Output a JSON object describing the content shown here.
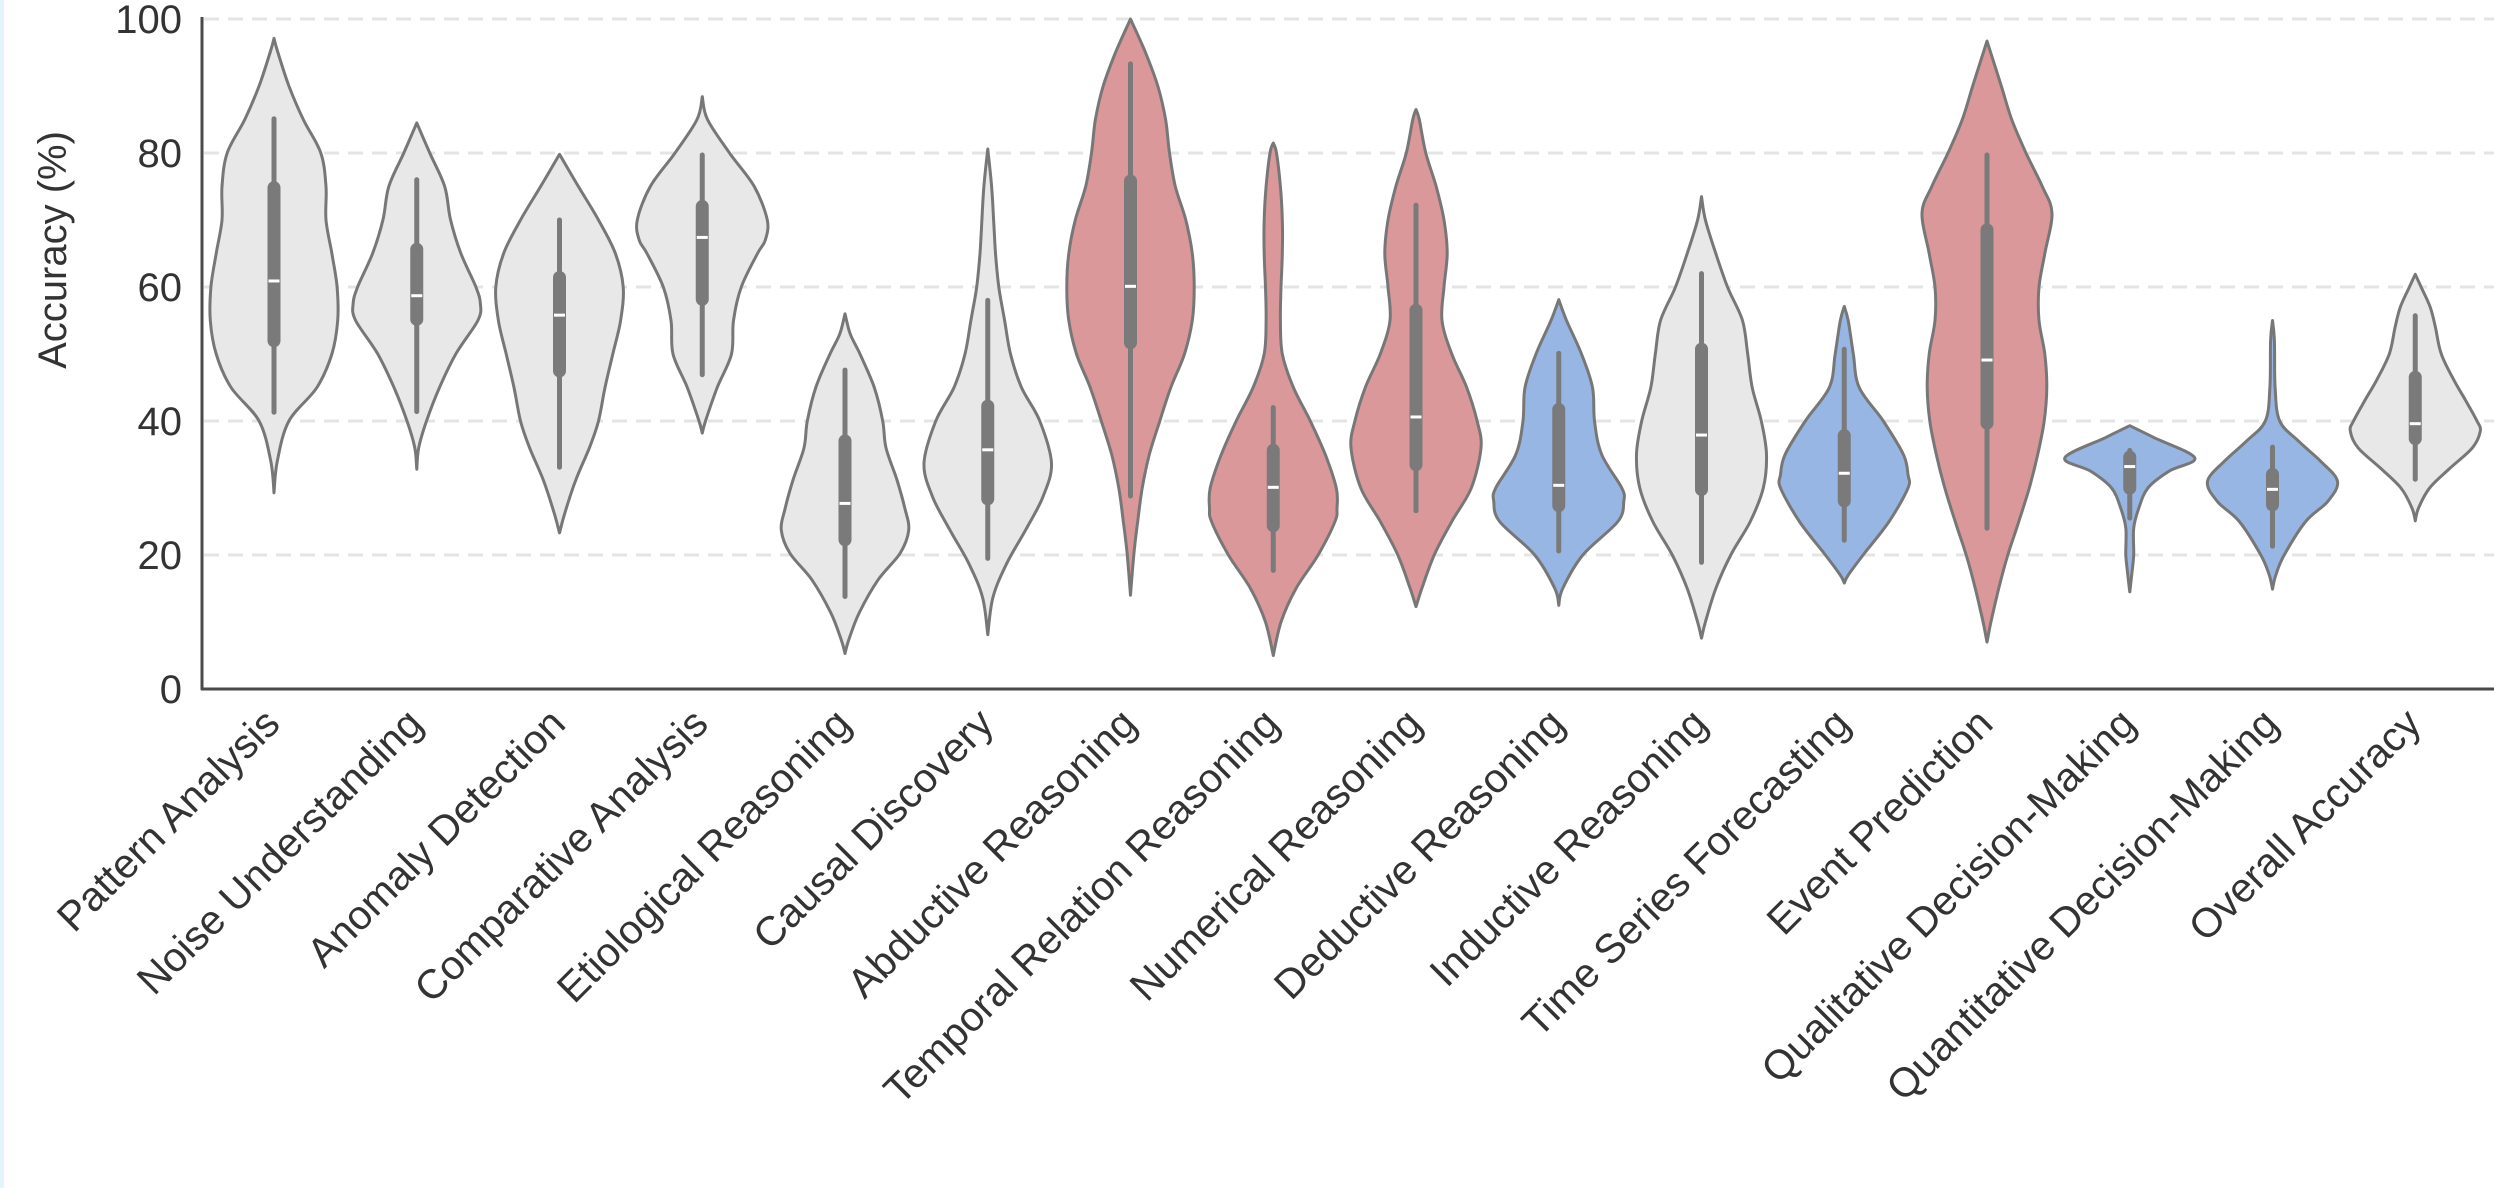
{
  "chart_data": {
    "type": "violin",
    "title": "",
    "xlabel": "",
    "ylabel": "Accuracy (%)",
    "ylim": [
      0,
      100
    ],
    "yticks": [
      "0",
      "20",
      "40",
      "60",
      "80",
      "100"
    ],
    "grid": "horizontal dashed",
    "legend": "none",
    "colors": {
      "neutral": "#e8e8e8",
      "red": "#da989a",
      "blue": "#97b6e3",
      "outline": "#777777",
      "box": "#7a7a7a",
      "median": "#ffffff"
    },
    "categories": [
      "Pattern Analysis",
      "Noise Understanding",
      "Anomaly Detection",
      "Comparative Analysis",
      "Etiological Reasoning",
      "Causal Discovery",
      "Abductive Reasoning",
      "Temporal Relation Reasoning",
      "Numerical Reasoning",
      "Deductive Reasoning",
      "Inductive Reasoning",
      "Time Series Forecasting",
      "Event Prediction",
      "Qualitative Decision-Making",
      "Quantitative Decision-Making",
      "Overall Accuracy"
    ],
    "violins": [
      {
        "color": "neutral",
        "min": 29.3,
        "max": 97.1,
        "whisker_low": 41.3,
        "q1": 51.6,
        "median": 60.9,
        "q3": 75.2,
        "whisker_high": 85.1,
        "density": [
          [
            29.3,
            0
          ],
          [
            34,
            0.05
          ],
          [
            40,
            0.23
          ],
          [
            45,
            0.66
          ],
          [
            50,
            0.89
          ],
          [
            55,
            0.98
          ],
          [
            60,
            0.97
          ],
          [
            65,
            0.89
          ],
          [
            70,
            0.8
          ],
          [
            75,
            0.8
          ],
          [
            80,
            0.72
          ],
          [
            85,
            0.45
          ],
          [
            90,
            0.23
          ],
          [
            95,
            0.06
          ],
          [
            97.1,
            0
          ]
        ]
      },
      {
        "color": "neutral",
        "min": 32.8,
        "max": 84.5,
        "whisker_low": 41.4,
        "q1": 54.8,
        "median": 58.7,
        "q3": 66.0,
        "whisker_high": 76.0,
        "density": [
          [
            32.8,
            0
          ],
          [
            36,
            0.03
          ],
          [
            40,
            0.15
          ],
          [
            45,
            0.35
          ],
          [
            50,
            0.6
          ],
          [
            55,
            0.94
          ],
          [
            57.5,
            0.98
          ],
          [
            60,
            0.91
          ],
          [
            65,
            0.68
          ],
          [
            70,
            0.52
          ],
          [
            75,
            0.43
          ],
          [
            80,
            0.2
          ],
          [
            84.5,
            0
          ]
        ]
      },
      {
        "color": "neutral",
        "min": 23.3,
        "max": 79.8,
        "whisker_low": 33.1,
        "q1": 47.1,
        "median": 55.8,
        "q3": 61.8,
        "whisker_high": 70.0,
        "density": [
          [
            23.3,
            0
          ],
          [
            26.2,
            0.08
          ],
          [
            31.2,
            0.25
          ],
          [
            36,
            0.46
          ],
          [
            40,
            0.6
          ],
          [
            45,
            0.7
          ],
          [
            50,
            0.82
          ],
          [
            55,
            0.94
          ],
          [
            60,
            0.98
          ],
          [
            65,
            0.86
          ],
          [
            70,
            0.6
          ],
          [
            75,
            0.29
          ],
          [
            79.8,
            0
          ]
        ]
      },
      {
        "color": "neutral",
        "min": 38.2,
        "max": 88.4,
        "whisker_low": 46.9,
        "q1": 57.8,
        "median": 67.4,
        "q3": 72.4,
        "whisker_high": 79.7,
        "density": [
          [
            38.2,
            0
          ],
          [
            40,
            0.05
          ],
          [
            45,
            0.23
          ],
          [
            50,
            0.45
          ],
          [
            55,
            0.48
          ],
          [
            60,
            0.6
          ],
          [
            65,
            0.85
          ],
          [
            67,
            0.97
          ],
          [
            70,
            1.0
          ],
          [
            75,
            0.8
          ],
          [
            80,
            0.42
          ],
          [
            85,
            0.08
          ],
          [
            88.4,
            0
          ]
        ]
      },
      {
        "color": "neutral",
        "min": 5.3,
        "max": 56.0,
        "whisker_low": 13.8,
        "q1": 21.9,
        "median": 27.7,
        "q3": 37.4,
        "whisker_high": 47.6,
        "density": [
          [
            5.3,
            0
          ],
          [
            7.4,
            0.06
          ],
          [
            11.4,
            0.22
          ],
          [
            16.3,
            0.51
          ],
          [
            20.3,
            0.85
          ],
          [
            23.7,
            0.98
          ],
          [
            27,
            0.92
          ],
          [
            31.2,
            0.8
          ],
          [
            36,
            0.63
          ],
          [
            40,
            0.58
          ],
          [
            45,
            0.45
          ],
          [
            50,
            0.23
          ],
          [
            53,
            0.08
          ],
          [
            56,
            0
          ]
        ]
      },
      {
        "color": "neutral",
        "min": 8.1,
        "max": 80.6,
        "whisker_low": 19.5,
        "q1": 28.0,
        "median": 35.7,
        "q3": 42.6,
        "whisker_high": 58.0,
        "density": [
          [
            8.1,
            0
          ],
          [
            13.7,
            0.08
          ],
          [
            18.7,
            0.29
          ],
          [
            23.7,
            0.58
          ],
          [
            28.7,
            0.85
          ],
          [
            33.7,
            0.98
          ],
          [
            40,
            0.8
          ],
          [
            45,
            0.52
          ],
          [
            50,
            0.35
          ],
          [
            55,
            0.26
          ],
          [
            60,
            0.17
          ],
          [
            65,
            0.12
          ],
          [
            70,
            0.09
          ],
          [
            75,
            0.06
          ],
          [
            80.6,
            0
          ]
        ]
      },
      {
        "color": "red",
        "min": 14.0,
        "max": 100.0,
        "whisker_low": 28.8,
        "q1": 51.3,
        "median": 60.1,
        "q3": 76.2,
        "whisker_high": 93.3,
        "density": [
          [
            14,
            0
          ],
          [
            20,
            0.05
          ],
          [
            25,
            0.11
          ],
          [
            30,
            0.18
          ],
          [
            35,
            0.29
          ],
          [
            40,
            0.45
          ],
          [
            45,
            0.62
          ],
          [
            50,
            0.83
          ],
          [
            55,
            0.95
          ],
          [
            60,
            0.98
          ],
          [
            65,
            0.95
          ],
          [
            70,
            0.85
          ],
          [
            75,
            0.69
          ],
          [
            80,
            0.6
          ],
          [
            85,
            0.54
          ],
          [
            90,
            0.42
          ],
          [
            95,
            0.23
          ],
          [
            100,
            0
          ]
        ]
      },
      {
        "color": "red",
        "min": 5.0,
        "max": 81.5,
        "whisker_low": 17.7,
        "q1": 24.0,
        "median": 30.1,
        "q3": 36.0,
        "whisker_high": 42.0,
        "density": [
          [
            5,
            0
          ],
          [
            10,
            0.12
          ],
          [
            15,
            0.35
          ],
          [
            20,
            0.69
          ],
          [
            25,
            0.95
          ],
          [
            27,
            0.98
          ],
          [
            30,
            0.97
          ],
          [
            35,
            0.8
          ],
          [
            40,
            0.57
          ],
          [
            45,
            0.31
          ],
          [
            50,
            0.14
          ],
          [
            55,
            0.11
          ],
          [
            60,
            0.12
          ],
          [
            65,
            0.14
          ],
          [
            70,
            0.14
          ],
          [
            75,
            0.11
          ],
          [
            80,
            0.05
          ],
          [
            81.5,
            0
          ]
        ]
      },
      {
        "color": "red",
        "min": 12.3,
        "max": 86.5,
        "whisker_low": 26.6,
        "q1": 33.1,
        "median": 40.6,
        "q3": 56.9,
        "whisker_high": 72.2,
        "density": [
          [
            12.3,
            0
          ],
          [
            15,
            0.09
          ],
          [
            20,
            0.28
          ],
          [
            25,
            0.55
          ],
          [
            30,
            0.85
          ],
          [
            36,
            1.0
          ],
          [
            40,
            0.94
          ],
          [
            45,
            0.78
          ],
          [
            50,
            0.55
          ],
          [
            55,
            0.4
          ],
          [
            60,
            0.43
          ],
          [
            65,
            0.48
          ],
          [
            70,
            0.43
          ],
          [
            75,
            0.31
          ],
          [
            80,
            0.15
          ],
          [
            85,
            0.05
          ],
          [
            86.5,
            0
          ]
        ]
      },
      {
        "color": "blue",
        "min": 12.5,
        "max": 58.1,
        "whisker_low": 20.6,
        "q1": 27.0,
        "median": 30.4,
        "q3": 42.1,
        "whisker_high": 50.1,
        "density": [
          [
            12.5,
            0
          ],
          [
            15,
            0.06
          ],
          [
            20,
            0.37
          ],
          [
            25,
            0.91
          ],
          [
            28,
            1.0
          ],
          [
            30,
            0.97
          ],
          [
            35,
            0.66
          ],
          [
            40,
            0.55
          ],
          [
            45,
            0.52
          ],
          [
            50,
            0.35
          ],
          [
            55,
            0.12
          ],
          [
            58.1,
            0
          ]
        ]
      },
      {
        "color": "neutral",
        "min": 7.6,
        "max": 73.5,
        "whisker_low": 18.9,
        "q1": 29.4,
        "median": 37.9,
        "q3": 51.1,
        "whisker_high": 62.0,
        "density": [
          [
            7.6,
            0
          ],
          [
            10,
            0.06
          ],
          [
            15,
            0.22
          ],
          [
            20,
            0.45
          ],
          [
            25,
            0.75
          ],
          [
            30,
            0.95
          ],
          [
            35,
            1.0
          ],
          [
            40,
            0.92
          ],
          [
            45,
            0.78
          ],
          [
            50,
            0.71
          ],
          [
            55,
            0.63
          ],
          [
            60,
            0.4
          ],
          [
            65,
            0.22
          ],
          [
            70,
            0.06
          ],
          [
            73.5,
            0
          ]
        ]
      },
      {
        "color": "blue",
        "min": 15.8,
        "max": 57.1,
        "whisker_low": 22.2,
        "q1": 27.7,
        "median": 32.2,
        "q3": 38.2,
        "whisker_high": 50.7,
        "density": [
          [
            15.8,
            0
          ],
          [
            17,
            0.06
          ],
          [
            20,
            0.29
          ],
          [
            25,
            0.69
          ],
          [
            30,
            0.98
          ],
          [
            32,
            0.98
          ],
          [
            35,
            0.91
          ],
          [
            40,
            0.6
          ],
          [
            45,
            0.23
          ],
          [
            50,
            0.14
          ],
          [
            55,
            0.06
          ],
          [
            57.1,
            0
          ]
        ]
      },
      {
        "color": "red",
        "min": 7.0,
        "max": 96.7,
        "whisker_low": 24.0,
        "q1": 39.3,
        "median": 49.1,
        "q3": 68.9,
        "whisker_high": 79.7,
        "density": [
          [
            7,
            0
          ],
          [
            10,
            0.06
          ],
          [
            15,
            0.18
          ],
          [
            20,
            0.32
          ],
          [
            25,
            0.49
          ],
          [
            30,
            0.65
          ],
          [
            35,
            0.78
          ],
          [
            40,
            0.88
          ],
          [
            45,
            0.92
          ],
          [
            50,
            0.89
          ],
          [
            55,
            0.8
          ],
          [
            60,
            0.8
          ],
          [
            65,
            0.89
          ],
          [
            71,
            1.0
          ],
          [
            75,
            0.85
          ],
          [
            80,
            0.6
          ],
          [
            85,
            0.38
          ],
          [
            90,
            0.22
          ],
          [
            96.7,
            0
          ]
        ]
      },
      {
        "color": "blue",
        "min": 14.5,
        "max": 39.3,
        "whisker_low": 25.5,
        "q1": 29.6,
        "median": 33.2,
        "q3": 35.0,
        "whisker_high": 35.6,
        "density": [
          [
            14.5,
            0
          ],
          [
            17,
            0.03
          ],
          [
            20,
            0.06
          ],
          [
            24,
            0.06
          ],
          [
            27,
            0.14
          ],
          [
            30,
            0.28
          ],
          [
            32.5,
            0.6
          ],
          [
            34.5,
            1.0
          ],
          [
            37.5,
            0.38
          ],
          [
            39.3,
            0
          ]
        ]
      },
      {
        "color": "blue",
        "min": 14.9,
        "max": 55.0,
        "whisker_low": 21.3,
        "q1": 27.1,
        "median": 29.8,
        "q3": 32.4,
        "whisker_high": 36.1,
        "density": [
          [
            14.9,
            0
          ],
          [
            17,
            0.05
          ],
          [
            20,
            0.18
          ],
          [
            25,
            0.51
          ],
          [
            28,
            0.85
          ],
          [
            31,
            1.0
          ],
          [
            34,
            0.74
          ],
          [
            37,
            0.4
          ],
          [
            40,
            0.11
          ],
          [
            45,
            0.04
          ],
          [
            52,
            0.03
          ],
          [
            55,
            0
          ]
        ]
      },
      {
        "color": "neutral",
        "min": 25.1,
        "max": 61.9,
        "whisker_low": 31.3,
        "q1": 37.0,
        "median": 39.6,
        "q3": 46.9,
        "whisker_high": 55.7,
        "density": [
          [
            25.1,
            0
          ],
          [
            27,
            0.05
          ],
          [
            30,
            0.22
          ],
          [
            33,
            0.54
          ],
          [
            36,
            0.88
          ],
          [
            38.5,
            1.0
          ],
          [
            40,
            0.95
          ],
          [
            43,
            0.78
          ],
          [
            46,
            0.6
          ],
          [
            50,
            0.4
          ],
          [
            54,
            0.31
          ],
          [
            57,
            0.23
          ],
          [
            60,
            0.09
          ],
          [
            61.9,
            0
          ]
        ]
      }
    ]
  }
}
